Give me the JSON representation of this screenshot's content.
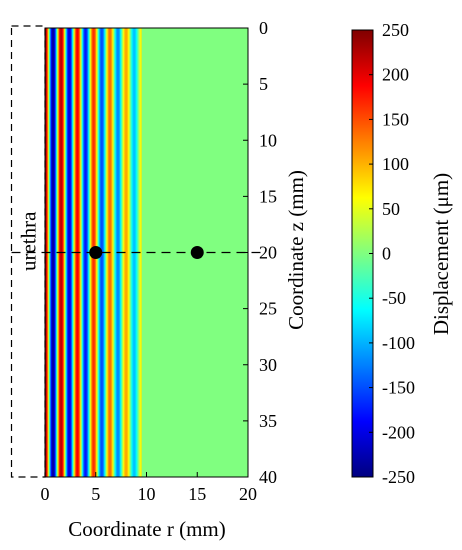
{
  "chart_data": {
    "type": "heatmap",
    "xlabel": "Coordinate r (mm)",
    "ylabel": "Coordinate z (mm)",
    "xlim": [
      0,
      20
    ],
    "ylim": [
      0,
      40
    ],
    "y_reversed": true,
    "x_ticks": [
      0,
      5,
      10,
      15,
      20
    ],
    "y_ticks": [
      0,
      5,
      10,
      15,
      20,
      25,
      30,
      35,
      40
    ],
    "colormap": "jet",
    "colorbar": {
      "label": "Displacement (μm)",
      "range": [
        -250,
        250
      ],
      "ticks": [
        250,
        200,
        150,
        100,
        50,
        0,
        -50,
        -100,
        -150,
        -200,
        -250
      ]
    },
    "field_profile": {
      "description_units": "r in mm, displacement in μm, uniform along z",
      "r_extent": [
        0,
        9.5
      ],
      "wavelength_mm": 1.6,
      "amplitude_start": 250,
      "amplitude_end": 80,
      "background_value": 0
    },
    "region_label": "urethra",
    "region_r_range": [
      -3.3,
      0
    ],
    "dashed_line_z": 20,
    "points": [
      {
        "r": 5,
        "z": 20
      },
      {
        "r": 15,
        "z": 20
      }
    ]
  }
}
